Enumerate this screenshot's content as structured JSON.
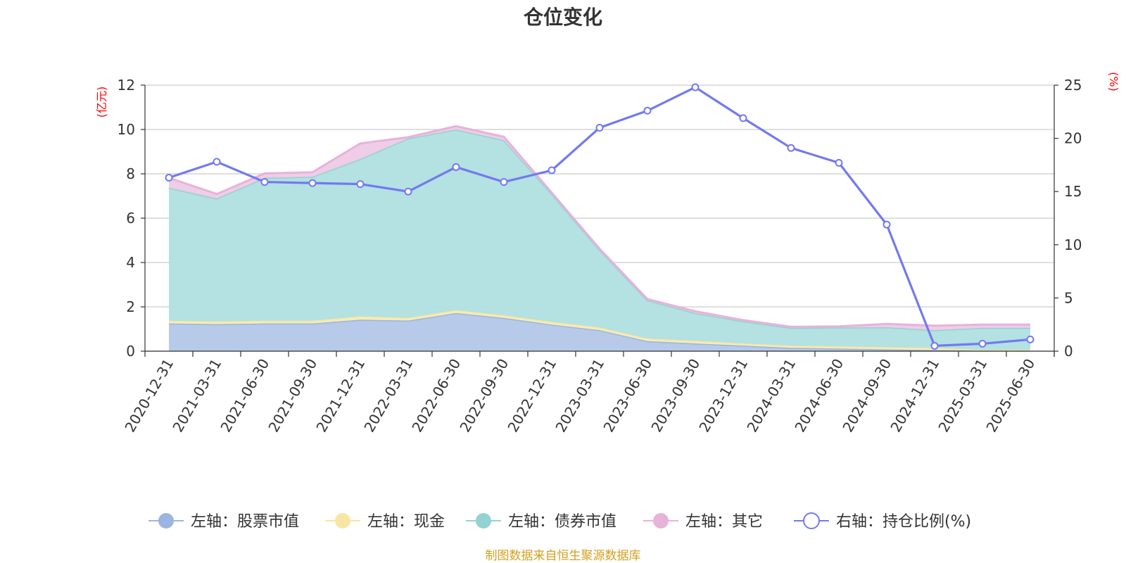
{
  "chart_data": {
    "type": "area",
    "title": "仓位变化",
    "source": "制图数据来自恒生聚源数据库",
    "left_unit": "(亿元)",
    "right_unit": "(%)",
    "y_left": {
      "min": 0,
      "max": 12,
      "ticks": [
        "0",
        "2",
        "4",
        "6",
        "8",
        "10",
        "12"
      ]
    },
    "y_right": {
      "min": 0,
      "max": 25,
      "ticks": [
        "0",
        "5",
        "10",
        "15",
        "20",
        "25"
      ]
    },
    "grid": true,
    "legend_position": "bottom",
    "categories": [
      "2020-12-31",
      "2021-03-31",
      "2021-06-30",
      "2021-09-30",
      "2021-12-31",
      "2022-03-31",
      "2022-06-30",
      "2022-09-30",
      "2022-12-31",
      "2023-03-31",
      "2023-06-30",
      "2023-09-30",
      "2023-12-31",
      "2024-03-31",
      "2024-06-30",
      "2024-09-30",
      "2024-12-31",
      "2025-03-31",
      "2025-06-30"
    ],
    "stacked_series": [
      {
        "name": "左轴：股票市值",
        "color": "#9bb5e0",
        "fill": "#b6c9ea",
        "values": [
          1.25,
          1.22,
          1.25,
          1.25,
          1.42,
          1.38,
          1.72,
          1.5,
          1.2,
          0.95,
          0.45,
          0.35,
          0.25,
          0.15,
          0.12,
          0.08,
          0.05,
          0.03,
          0.03
        ]
      },
      {
        "name": "左轴：现金",
        "color": "#f7e6a3",
        "fill": "#f8ecb4",
        "values": [
          0.12,
          0.12,
          0.12,
          0.12,
          0.15,
          0.12,
          0.13,
          0.12,
          0.12,
          0.12,
          0.12,
          0.12,
          0.1,
          0.1,
          0.1,
          0.1,
          0.1,
          0.02,
          0.02
        ]
      },
      {
        "name": "左轴：债券市值",
        "color": "#93d2d2",
        "fill": "#b3e0e0",
        "values": [
          6.0,
          5.55,
          6.45,
          6.5,
          7.1,
          8.1,
          8.15,
          7.9,
          5.78,
          3.5,
          1.73,
          1.25,
          1.0,
          0.8,
          0.85,
          0.9,
          0.8,
          1.0,
          1.0
        ]
      },
      {
        "name": "左轴：其它",
        "color": "#e6b3d9",
        "fill": "#f0cce5",
        "values": [
          0.45,
          0.2,
          0.2,
          0.2,
          0.7,
          0.05,
          0.15,
          0.15,
          0.05,
          0.05,
          0.05,
          0.08,
          0.05,
          0.05,
          0.05,
          0.15,
          0.2,
          0.15,
          0.15
        ]
      }
    ],
    "line_series": {
      "name": "右轴：持仓比例(%)",
      "axis": "right",
      "color": "#7379f0",
      "values": [
        16.3,
        17.8,
        15.9,
        15.8,
        15.7,
        15.0,
        17.3,
        15.9,
        17.0,
        21.0,
        22.6,
        24.8,
        21.9,
        19.1,
        17.7,
        11.9,
        0.5,
        0.7,
        1.1
      ]
    }
  }
}
